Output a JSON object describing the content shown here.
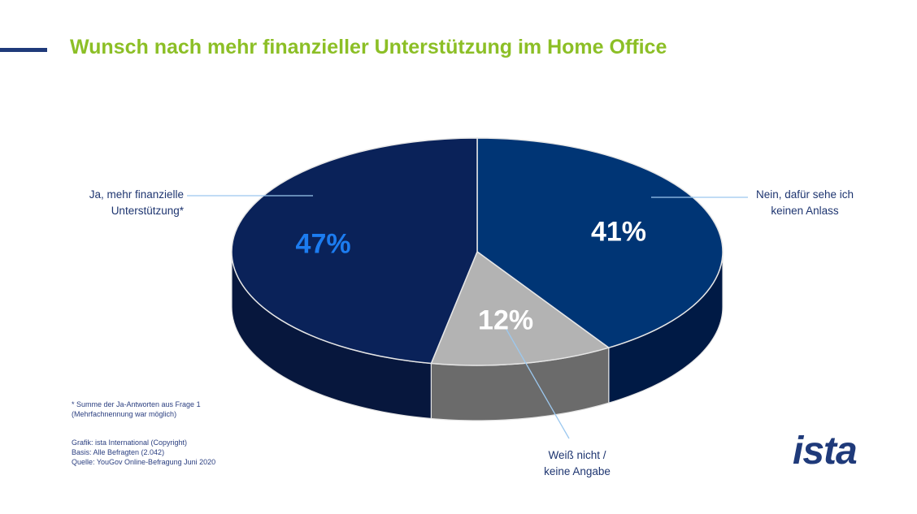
{
  "title": "Wunsch nach mehr finanzieller Unterstützung im Home Office",
  "chart_data": {
    "type": "pie",
    "three_d": true,
    "slices": [
      {
        "label_lines": [
          "Ja, mehr finanzielle",
          "Unterstützung*"
        ],
        "value": 47,
        "display": "47%",
        "color": "#0a2259",
        "side_color": "#07173d",
        "text_color": "#1c7cf0"
      },
      {
        "label_lines": [
          "Nein, dafür sehe ich",
          "keinen Anlass"
        ],
        "value": 41,
        "display": "41%",
        "color": "#003575",
        "side_color": "#001a45",
        "text_color": "#ffffff"
      },
      {
        "label_lines": [
          "Weiß nicht /",
          "keine Angabe"
        ],
        "value": 12,
        "display": "12%",
        "color": "#b3b3b3",
        "side_color": "#6b6b6b",
        "text_color": "#ffffff"
      }
    ]
  },
  "footnote": [
    "* Summe der Ja-Antworten aus Frage 1",
    "(Mehrfachnennung war möglich)"
  ],
  "sources": [
    "Grafik: ista International (Copyright)",
    "Basis: Alle Befragten (2.042)",
    "Quelle: YouGov Online-Befragung Juni 2020"
  ],
  "logo": {
    "text": "ista",
    "color": "#1f3a7a"
  },
  "colors": {
    "title": "#8cbf26",
    "text": "#1e3570",
    "accent": "#1f3a7a",
    "leader_line": "#9cc8ef"
  }
}
